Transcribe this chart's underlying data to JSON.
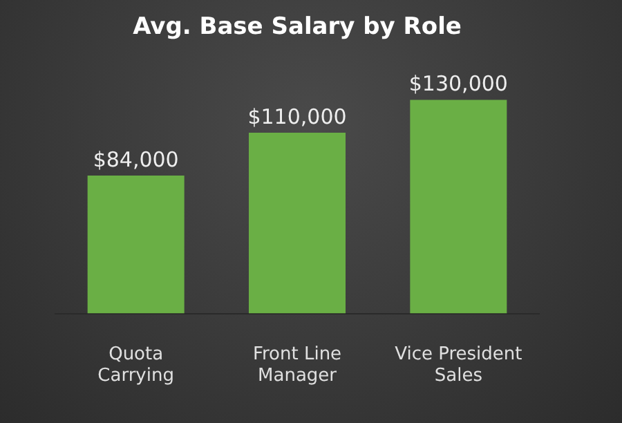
{
  "chart_data": {
    "type": "bar",
    "title": "Avg. Base Salary by Role",
    "categories": [
      "Quota Carrying",
      "Front Line Manager",
      "Vice President Sales"
    ],
    "values": [
      84000,
      110000,
      130000
    ],
    "value_labels": [
      "$84,000",
      "$110,000",
      "$130,000"
    ],
    "color": "#6aaf45",
    "grid": false,
    "legend": false
  }
}
